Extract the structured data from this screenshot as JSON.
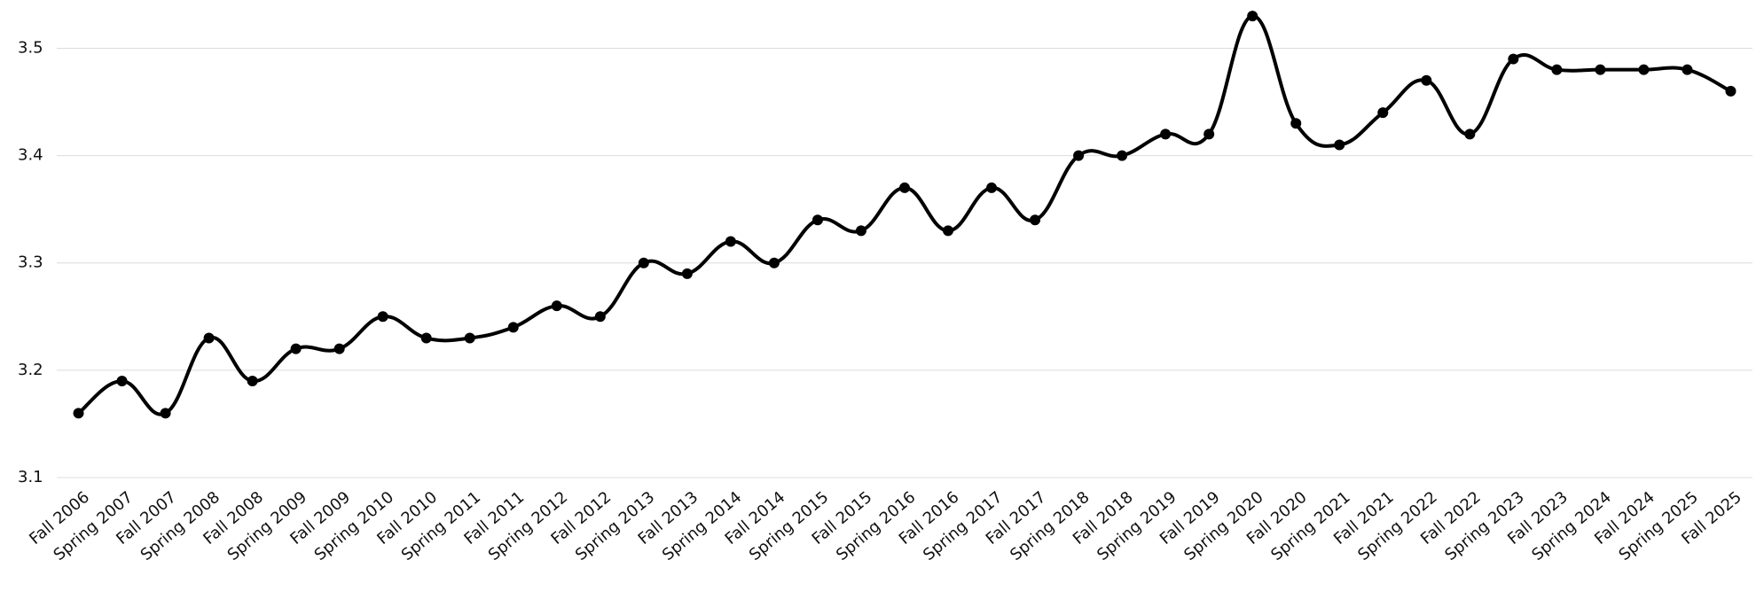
{
  "chart_data": {
    "type": "line",
    "categories": [
      "Fall 2006",
      "Spring 2007",
      "Fall 2007",
      "Spring 2008",
      "Fall 2008",
      "Spring 2009",
      "Fall 2009",
      "Spring 2010",
      "Fall 2010",
      "Spring 2011",
      "Fall 2011",
      "Spring 2012",
      "Fall 2012",
      "Spring 2013",
      "Fall 2013",
      "Spring 2014",
      "Fall 2014",
      "Spring 2015",
      "Fall 2015",
      "Spring 2016",
      "Fall 2016",
      "Spring 2017",
      "Fall 2017",
      "Spring 2018",
      "Fall 2018",
      "Spring 2019",
      "Fall 2019",
      "Spring 2020",
      "Fall 2020",
      "Spring 2021",
      "Fall 2021",
      "Spring 2022",
      "Fall 2022",
      "Spring 2023",
      "Fall 2023",
      "Spring 2024",
      "Fall 2024",
      "Spring 2025",
      "Fall 2025"
    ],
    "values": [
      3.16,
      3.19,
      3.16,
      3.23,
      3.19,
      3.22,
      3.22,
      3.25,
      3.23,
      3.23,
      3.24,
      3.26,
      3.25,
      3.3,
      3.29,
      3.32,
      3.3,
      3.34,
      3.33,
      3.37,
      3.33,
      3.37,
      3.34,
      3.4,
      3.4,
      3.42,
      3.42,
      3.53,
      3.43,
      3.41,
      3.44,
      3.47,
      3.42,
      3.49,
      3.48,
      3.48,
      3.48,
      3.48,
      3.46
    ],
    "color": "#000000",
    "ylim": [
      3.1,
      3.54
    ],
    "yticks": [
      {
        "value": 3.1,
        "label": "3.1"
      },
      {
        "value": 3.2,
        "label": "3.2"
      },
      {
        "value": 3.3,
        "label": "3.3"
      },
      {
        "value": 3.4,
        "label": "3.4"
      },
      {
        "value": 3.5,
        "label": "3.5"
      }
    ],
    "grid": true,
    "smooth": true
  }
}
